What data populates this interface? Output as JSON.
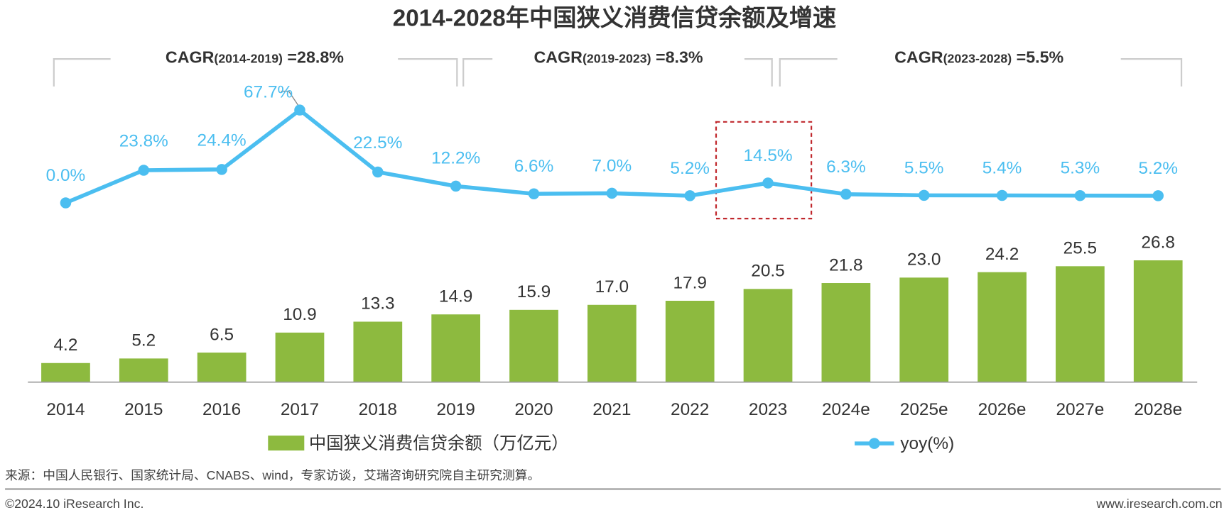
{
  "colors": {
    "bar": "#8dba3f",
    "line": "#4bbef0",
    "highlight_box": "#c0282d",
    "text": "#333333",
    "bracket": "#cccccc"
  },
  "chart_data": {
    "type": "bar+line",
    "title": "2014-2028年中国狭义消费信贷余额及增速",
    "categories": [
      "2014",
      "2015",
      "2016",
      "2017",
      "2018",
      "2019",
      "2020",
      "2021",
      "2022",
      "2023",
      "2024e",
      "2025e",
      "2026e",
      "2027e",
      "2028e"
    ],
    "series": [
      {
        "name": "中国狭义消费信贷余额（万亿元）",
        "type": "bar",
        "values": [
          4.2,
          5.2,
          6.5,
          10.9,
          13.3,
          14.9,
          15.9,
          17.0,
          17.9,
          20.5,
          21.8,
          23.0,
          24.2,
          25.5,
          26.8
        ],
        "labels": [
          "4.2",
          "5.2",
          "6.5",
          "10.9",
          "13.3",
          "14.9",
          "15.9",
          "17.0",
          "17.9",
          "20.5",
          "21.8",
          "23.0",
          "24.2",
          "25.5",
          "26.8"
        ]
      },
      {
        "name": "yoy(%)",
        "type": "line",
        "values": [
          0.0,
          23.8,
          24.4,
          67.7,
          22.5,
          12.2,
          6.6,
          7.0,
          5.2,
          14.5,
          6.3,
          5.5,
          5.4,
          5.3,
          5.2
        ],
        "labels": [
          "0.0%",
          "23.8%",
          "24.4%",
          "67.7%",
          "22.5%",
          "12.2%",
          "6.6%",
          "7.0%",
          "5.2%",
          "14.5%",
          "6.3%",
          "5.5%",
          "5.4%",
          "5.3%",
          "5.2%"
        ]
      }
    ],
    "annotations": [
      {
        "prefix": "CAGR",
        "range": "(2014-2019)",
        "value": " =28.8%",
        "from": "2014",
        "to": "2019"
      },
      {
        "prefix": "CAGR",
        "range": "(2019-2023)",
        "value": " =8.3%",
        "from": "2019",
        "to": "2023"
      },
      {
        "prefix": "CAGR",
        "range": "(2023-2028)",
        "value": " =5.5%",
        "from": "2023",
        "to": "2028e"
      }
    ],
    "highlight": "2023",
    "legend_position": "bottom",
    "grid": false
  },
  "source": "来源：中国人民银行、国家统计局、CNABS、wind，专家访谈，艾瑞咨询研究院自主研究测算。",
  "footer": {
    "copyright": "©2024.10 iResearch Inc.",
    "website": "www.iresearch.com.cn"
  }
}
